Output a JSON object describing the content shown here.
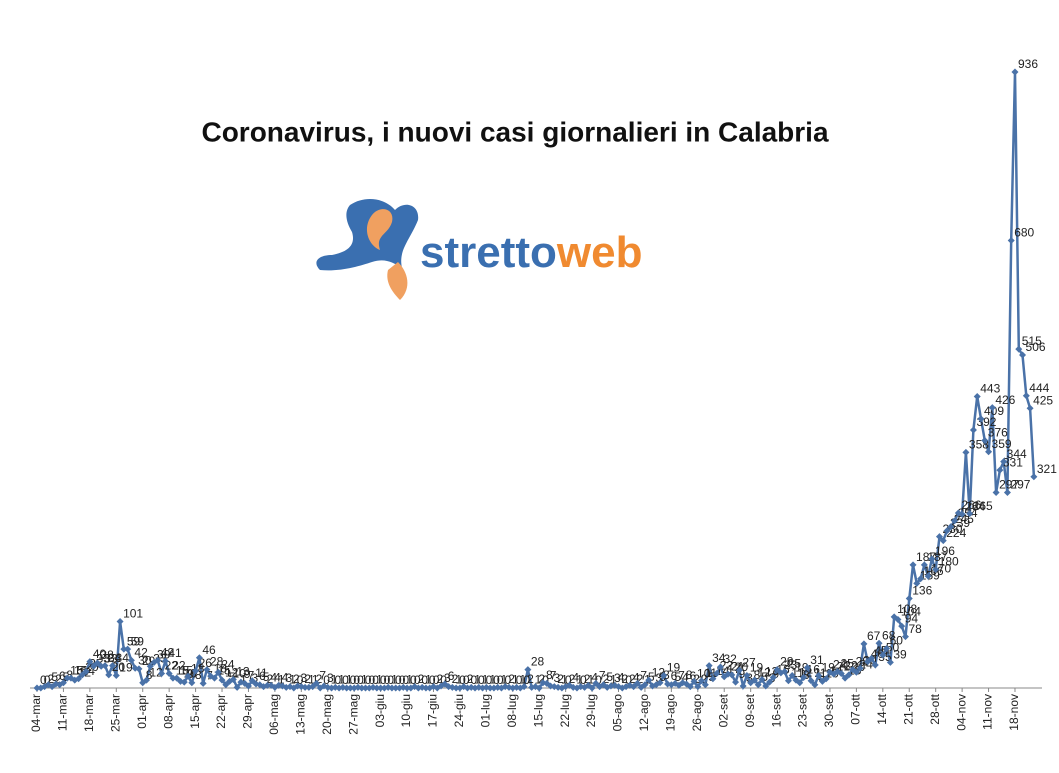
{
  "chart_data": {
    "type": "line",
    "title": "Coronavirus, i nuovi casi giornalieri in Calabria",
    "logo": {
      "part1": "stretto",
      "part2": "web"
    },
    "categories": [
      "04-mar",
      null,
      null,
      null,
      null,
      null,
      null,
      "11-mar",
      null,
      null,
      null,
      null,
      null,
      null,
      "18-mar",
      null,
      null,
      null,
      null,
      null,
      null,
      "25-mar",
      null,
      null,
      null,
      null,
      null,
      null,
      "01-apr",
      null,
      null,
      null,
      null,
      null,
      null,
      "08-apr",
      null,
      null,
      null,
      null,
      null,
      null,
      "15-apr",
      null,
      null,
      null,
      null,
      null,
      null,
      "22-apr",
      null,
      null,
      null,
      null,
      null,
      null,
      "29-apr",
      null,
      null,
      null,
      null,
      null,
      null,
      "06-mag",
      null,
      null,
      null,
      null,
      null,
      null,
      "13-mag",
      null,
      null,
      null,
      null,
      null,
      null,
      "20-mag",
      null,
      null,
      null,
      null,
      null,
      null,
      "27-mag",
      null,
      null,
      null,
      null,
      null,
      null,
      "03-giu",
      null,
      null,
      null,
      null,
      null,
      null,
      "10-giu",
      null,
      null,
      null,
      null,
      null,
      null,
      "17-giu",
      null,
      null,
      null,
      null,
      null,
      null,
      "24-giu",
      null,
      null,
      null,
      null,
      null,
      null,
      "01-lug",
      null,
      null,
      null,
      null,
      null,
      null,
      "08-lug",
      null,
      null,
      null,
      null,
      null,
      null,
      "15-lug",
      null,
      null,
      null,
      null,
      null,
      null,
      "22-lug",
      null,
      null,
      null,
      null,
      null,
      null,
      "29-lug",
      null,
      null,
      null,
      null,
      null,
      null,
      "05-ago",
      null,
      null,
      null,
      null,
      null,
      null,
      "12-ago",
      null,
      null,
      null,
      null,
      null,
      null,
      "19-ago",
      null,
      null,
      null,
      null,
      null,
      null,
      "26-ago",
      null,
      null,
      null,
      null,
      null,
      null,
      "02-set",
      null,
      null,
      null,
      null,
      null,
      null,
      "09-set",
      null,
      null,
      null,
      null,
      null,
      null,
      "16-set",
      null,
      null,
      null,
      null,
      null,
      null,
      "23-set",
      null,
      null,
      null,
      null,
      null,
      null,
      "30-set",
      null,
      null,
      null,
      null,
      null,
      null,
      "07-ott",
      null,
      null,
      null,
      null,
      null,
      null,
      "14-ott",
      null,
      null,
      null,
      null,
      null,
      null,
      "21-ott",
      null,
      null,
      null,
      null,
      null,
      null,
      "28-ott",
      null,
      null,
      null,
      null,
      null,
      null,
      "04-nov",
      null,
      null,
      null,
      null,
      null,
      null,
      "11-nov",
      null,
      null,
      null,
      null,
      null,
      null,
      "18-nov",
      null,
      null,
      null,
      null,
      null
    ],
    "values": [
      0,
      0,
      2,
      5,
      2,
      6,
      5,
      8,
      15,
      15,
      12,
      14,
      20,
      25,
      40,
      33,
      38,
      33,
      34,
      20,
      34,
      19,
      101,
      59,
      59,
      42,
      30,
      29,
      8,
      12,
      33,
      39,
      42,
      22,
      41,
      22,
      15,
      15,
      10,
      9,
      18,
      8,
      26,
      46,
      7,
      28,
      18,
      15,
      24,
      12,
      5,
      10,
      13,
      1,
      9,
      7,
      3,
      11,
      6,
      5,
      2,
      4,
      4,
      1,
      4,
      3,
      1,
      2,
      0,
      3,
      2,
      1,
      1,
      2,
      7,
      0,
      3,
      1,
      0,
      1,
      0,
      1,
      0,
      0,
      0,
      1,
      0,
      0,
      0,
      1,
      0,
      0,
      0,
      1,
      0,
      0,
      0,
      1,
      0,
      0,
      2,
      0,
      1,
      0,
      0,
      2,
      0,
      3,
      6,
      2,
      1,
      0,
      0,
      2,
      0,
      1,
      0,
      1,
      0,
      1,
      0,
      0,
      1,
      0,
      2,
      1,
      0,
      1,
      0,
      2,
      28,
      1,
      2,
      0,
      8,
      7,
      3,
      2,
      1,
      0,
      2,
      4,
      1,
      0,
      2,
      1,
      4,
      0,
      7,
      2,
      5,
      1,
      3,
      4,
      2,
      0,
      2,
      4,
      2,
      7,
      1,
      5,
      12,
      3,
      5,
      8,
      19,
      6,
      5,
      7,
      4,
      8,
      6,
      2,
      10,
      2,
      11,
      5,
      34,
      14,
      22,
      32,
      17,
      21,
      20,
      9,
      27,
      3,
      19,
      8,
      12,
      5,
      13,
      3,
      9,
      16,
      28,
      23,
      25,
      11,
      19,
      12,
      8,
      16,
      31,
      11,
      5,
      19,
      10,
      14,
      24,
      21,
      25,
      22,
      15,
      20,
      28,
      24,
      30,
      67,
      40,
      45,
      35,
      68,
      50,
      60,
      39,
      108,
      104,
      94,
      78,
      136,
      187,
      159,
      166,
      187,
      170,
      196,
      180,
      230,
      224,
      239,
      245,
      254,
      266,
      264,
      358,
      265,
      392,
      443,
      409,
      376,
      359,
      426,
      297,
      331,
      344,
      297,
      680,
      936,
      515,
      506,
      444,
      425,
      321
    ],
    "color": "#4a72a8"
  }
}
